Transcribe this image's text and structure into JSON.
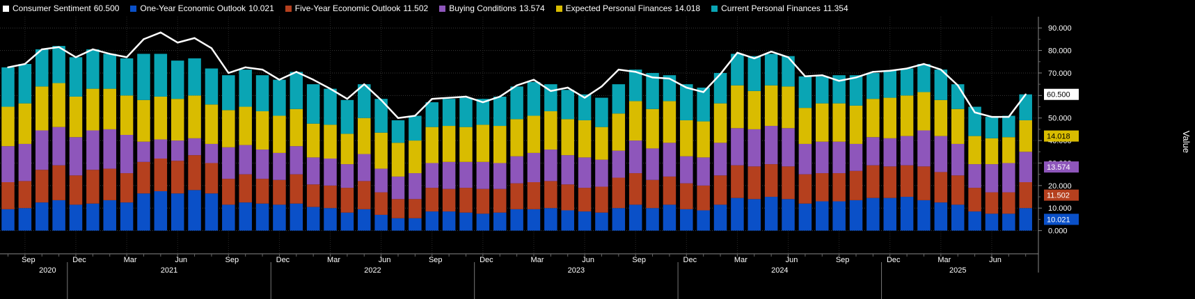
{
  "chart_data": {
    "type": "bar",
    "stacked": true,
    "title": "",
    "xlabel": "",
    "ylabel": "Value",
    "ylim": [
      -10,
      95
    ],
    "yticks": [
      0,
      10,
      20,
      30,
      40,
      50,
      60,
      70,
      80,
      90
    ],
    "ytick_labels": [
      "0.000",
      "10.000",
      "20.000",
      "30.000",
      "40.000",
      "50.000",
      "60.000",
      "70.000",
      "80.000",
      "90.000"
    ],
    "grid": true,
    "legend_position": "top",
    "start_period": "2020-08",
    "month_ticks": [
      "Sep",
      "Dec",
      "Mar",
      "Jun",
      "Sep",
      "Dec",
      "Mar",
      "Jun",
      "Sep",
      "Dec",
      "Mar",
      "Jun",
      "Sep",
      "Dec",
      "Mar",
      "Jun",
      "Sep",
      "Dec",
      "Mar",
      "Jun"
    ],
    "year_labels": [
      "2020",
      "2021",
      "2022",
      "2023",
      "2024",
      "2025"
    ],
    "series": [
      {
        "name": "One-Year Economic Outlook",
        "legend_value": "10.021",
        "color": "#0a50c8",
        "values": [
          9.5,
          10.0,
          12.5,
          13.5,
          11.5,
          12.0,
          13.5,
          12.5,
          16.5,
          17.5,
          16.5,
          18.0,
          16.5,
          11.5,
          12.5,
          12.0,
          11.5,
          12.0,
          10.5,
          10.0,
          8.0,
          9.5,
          7.0,
          5.5,
          5.5,
          8.5,
          8.5,
          8.0,
          7.5,
          8.0,
          9.5,
          9.5,
          10.0,
          9.0,
          8.5,
          8.0,
          10.0,
          11.5,
          10.0,
          11.5,
          9.5,
          9.0,
          11.5,
          14.5,
          14.0,
          15.0,
          14.0,
          12.0,
          13.0,
          13.0,
          13.5,
          14.5,
          14.5,
          15.0,
          13.5,
          12.5,
          11.5,
          8.5,
          7.5,
          7.5,
          10.0
        ]
      },
      {
        "name": "Five-Year Economic Outlook",
        "legend_value": "11.502",
        "color": "#b5401e",
        "values": [
          12.0,
          12.0,
          14.5,
          15.5,
          13.0,
          15.0,
          14.0,
          13.0,
          14.0,
          14.5,
          14.5,
          15.5,
          13.5,
          11.5,
          12.5,
          11.0,
          11.0,
          13.0,
          10.0,
          10.0,
          11.0,
          12.5,
          10.0,
          8.5,
          8.5,
          10.5,
          10.0,
          11.0,
          11.0,
          10.5,
          11.5,
          12.0,
          12.0,
          11.5,
          10.5,
          11.5,
          13.5,
          14.0,
          12.5,
          12.5,
          11.5,
          11.0,
          13.0,
          14.5,
          14.5,
          14.5,
          14.5,
          13.0,
          12.5,
          12.5,
          13.0,
          14.5,
          14.0,
          14.0,
          15.0,
          13.5,
          13.0,
          10.5,
          9.5,
          9.5,
          11.5
        ]
      },
      {
        "name": "Buying Conditions",
        "legend_value": "13.574",
        "color": "#8e56bb",
        "values": [
          16.0,
          16.5,
          17.5,
          17.0,
          17.0,
          17.5,
          17.5,
          17.0,
          9.0,
          8.5,
          9.0,
          7.5,
          8.5,
          14.0,
          13.0,
          13.0,
          12.0,
          12.5,
          12.0,
          12.0,
          10.5,
          12.0,
          10.5,
          10.0,
          11.5,
          11.0,
          12.0,
          11.5,
          12.0,
          11.5,
          12.0,
          13.0,
          14.0,
          13.0,
          13.5,
          12.0,
          12.0,
          14.5,
          14.0,
          15.0,
          12.0,
          12.5,
          14.5,
          16.5,
          16.5,
          17.0,
          17.0,
          13.5,
          14.0,
          14.0,
          12.0,
          12.5,
          12.5,
          13.0,
          16.0,
          16.0,
          14.0,
          10.5,
          12.5,
          13.0,
          13.5
        ]
      },
      {
        "name": "Expected Personal Finances",
        "legend_value": "14.018",
        "color": "#d9bc00",
        "values": [
          17.5,
          18.0,
          19.5,
          19.5,
          18.0,
          18.5,
          18.0,
          17.5,
          18.5,
          19.0,
          18.5,
          19.0,
          17.5,
          16.5,
          17.0,
          17.0,
          16.5,
          16.5,
          15.0,
          15.0,
          13.5,
          16.0,
          16.0,
          15.0,
          14.5,
          16.0,
          16.0,
          15.5,
          16.5,
          16.5,
          16.5,
          16.5,
          17.0,
          16.0,
          16.5,
          14.5,
          16.5,
          17.5,
          17.5,
          18.5,
          16.0,
          16.0,
          17.5,
          19.0,
          17.0,
          18.0,
          18.5,
          16.0,
          17.0,
          17.0,
          17.0,
          17.0,
          18.0,
          18.0,
          17.0,
          16.0,
          15.5,
          12.5,
          11.5,
          11.5,
          14.0
        ]
      },
      {
        "name": "Current Personal Finances",
        "legend_value": "11.354",
        "color": "#0aa5b4",
        "values": [
          17.5,
          17.5,
          16.5,
          16.5,
          17.5,
          17.5,
          15.5,
          16.5,
          20.5,
          19.0,
          17.0,
          16.5,
          16.0,
          15.5,
          16.5,
          16.0,
          16.0,
          16.5,
          17.5,
          16.0,
          15.0,
          15.0,
          15.0,
          10.0,
          11.0,
          11.0,
          12.0,
          13.0,
          11.5,
          13.0,
          14.5,
          15.0,
          12.0,
          13.0,
          11.5,
          13.0,
          13.0,
          14.0,
          16.0,
          11.5,
          16.0,
          15.0,
          13.5,
          14.0,
          15.5,
          14.0,
          13.5,
          14.0,
          12.0,
          12.5,
          13.5,
          11.5,
          12.0,
          12.0,
          12.5,
          13.5,
          11.0,
          13.0,
          9.5,
          9.5,
          11.5
        ]
      },
      {
        "name": "Consumer Sentiment",
        "legend_value": "60.500",
        "color": "#ffffff",
        "type": "line",
        "values": [
          72.5,
          74.0,
          80.5,
          81.5,
          77.0,
          80.5,
          78.5,
          77.0,
          85.0,
          88.0,
          83.5,
          85.5,
          81.0,
          70.0,
          72.5,
          71.5,
          67.0,
          70.5,
          67.0,
          63.0,
          58.5,
          65.0,
          58.0,
          50.0,
          51.0,
          58.5,
          59.0,
          59.5,
          57.0,
          59.5,
          64.5,
          67.0,
          62.0,
          63.5,
          59.0,
          64.0,
          71.5,
          70.5,
          68.0,
          67.5,
          63.5,
          61.5,
          69.5,
          79.0,
          76.5,
          79.5,
          77.0,
          68.5,
          69.0,
          66.5,
          68.0,
          70.5,
          71.0,
          72.0,
          74.0,
          71.5,
          64.5,
          52.5,
          50.5,
          50.5,
          60.5
        ]
      }
    ]
  }
}
